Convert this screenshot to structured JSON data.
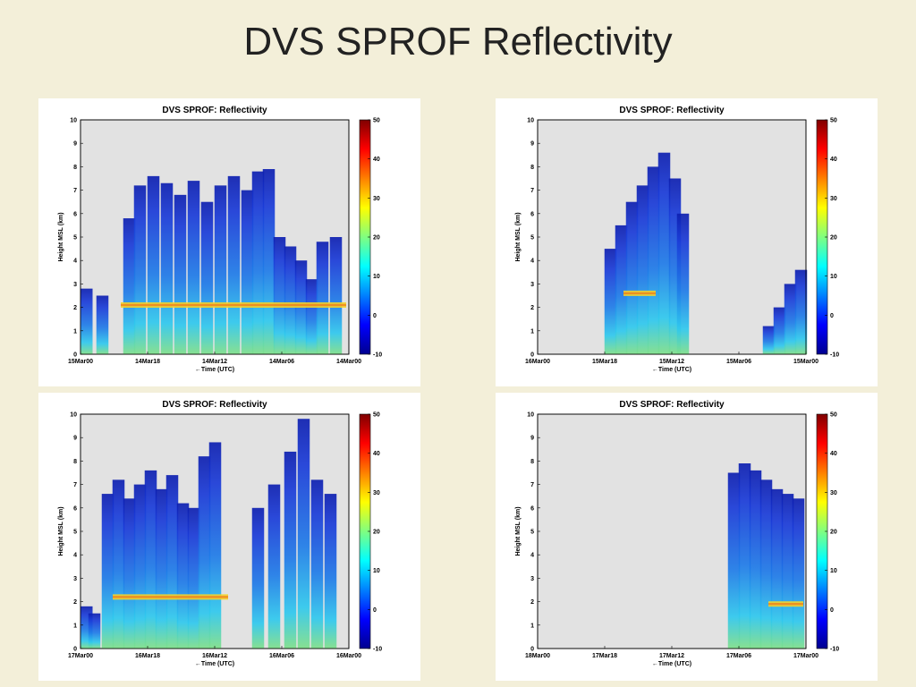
{
  "slide": {
    "title": "DVS SPROF Reflectivity"
  },
  "colors": {
    "background": "#f3efd9",
    "plot_background": "#e2e2e2",
    "colormap": [
      "#00008f",
      "#0000ff",
      "#0080ff",
      "#00ffff",
      "#80ff80",
      "#ffff00",
      "#ff8000",
      "#ff0000",
      "#800000"
    ]
  },
  "chart_data": [
    {
      "type": "heatmap",
      "title": "DVS SPROF: Reflectivity",
      "ylabel": "Height MSL (km)",
      "xlabel": "←Time (UTC)",
      "x_ticks": [
        "15Mar00",
        "14Mar18",
        "14Mar12",
        "14Mar06",
        "14Mar00"
      ],
      "y_ticks": [
        "0",
        "1",
        "2",
        "3",
        "4",
        "5",
        "6",
        "7",
        "8",
        "9",
        "10"
      ],
      "ylim": [
        0,
        10
      ],
      "colorbar": {
        "ticks": [
          "50",
          "40",
          "30",
          "20",
          "10",
          "0",
          "-10"
        ],
        "range": [
          -10,
          50
        ]
      },
      "echo_columns": [
        {
          "x": 0.02,
          "top": 2.8
        },
        {
          "x": 0.08,
          "top": 2.5
        },
        {
          "x": 0.14,
          "top": 0
        },
        {
          "x": 0.18,
          "top": 5.8
        },
        {
          "x": 0.22,
          "top": 7.2
        },
        {
          "x": 0.27,
          "top": 7.6
        },
        {
          "x": 0.32,
          "top": 7.3
        },
        {
          "x": 0.37,
          "top": 6.8
        },
        {
          "x": 0.42,
          "top": 7.4
        },
        {
          "x": 0.47,
          "top": 6.5
        },
        {
          "x": 0.52,
          "top": 7.2
        },
        {
          "x": 0.57,
          "top": 7.6
        },
        {
          "x": 0.62,
          "top": 7.0
        },
        {
          "x": 0.66,
          "top": 7.8
        },
        {
          "x": 0.7,
          "top": 7.9
        },
        {
          "x": 0.74,
          "top": 5.0
        },
        {
          "x": 0.78,
          "top": 4.6
        },
        {
          "x": 0.82,
          "top": 4.0
        },
        {
          "x": 0.86,
          "top": 3.2
        },
        {
          "x": 0.9,
          "top": 4.8
        },
        {
          "x": 0.95,
          "top": 5.0
        }
      ],
      "bright_band": {
        "height": 2.1,
        "from": 0.15,
        "to": 0.99
      }
    },
    {
      "type": "heatmap",
      "title": "DVS SPROF: Reflectivity",
      "ylabel": "Height MSL (km)",
      "xlabel": "←Time (UTC)",
      "x_ticks": [
        "16Mar00",
        "15Mar18",
        "15Mar12",
        "15Mar06",
        "15Mar00"
      ],
      "y_ticks": [
        "0",
        "1",
        "2",
        "3",
        "4",
        "5",
        "6",
        "7",
        "8",
        "9",
        "10"
      ],
      "ylim": [
        0,
        10
      ],
      "colorbar": {
        "ticks": [
          "50",
          "40",
          "30",
          "20",
          "10",
          "0",
          "-10"
        ],
        "range": [
          -10,
          50
        ]
      },
      "echo_columns": [
        {
          "x": 0.27,
          "top": 4.5
        },
        {
          "x": 0.31,
          "top": 5.5
        },
        {
          "x": 0.35,
          "top": 6.5
        },
        {
          "x": 0.39,
          "top": 7.2
        },
        {
          "x": 0.43,
          "top": 8.0
        },
        {
          "x": 0.47,
          "top": 8.6
        },
        {
          "x": 0.51,
          "top": 7.5
        },
        {
          "x": 0.54,
          "top": 6.0
        },
        {
          "x": 0.86,
          "top": 1.2
        },
        {
          "x": 0.9,
          "top": 2.0
        },
        {
          "x": 0.94,
          "top": 3.0
        },
        {
          "x": 0.98,
          "top": 3.6
        }
      ],
      "bright_band": {
        "height": 2.6,
        "from": 0.32,
        "to": 0.44
      }
    },
    {
      "type": "heatmap",
      "title": "DVS SPROF: Reflectivity",
      "ylabel": "Height MSL (km)",
      "xlabel": "←Time (UTC)",
      "x_ticks": [
        "17Mar00",
        "16Mar18",
        "16Mar12",
        "16Mar06",
        "16Mar00"
      ],
      "y_ticks": [
        "0",
        "1",
        "2",
        "3",
        "4",
        "5",
        "6",
        "7",
        "8",
        "9",
        "10"
      ],
      "ylim": [
        0,
        10
      ],
      "colorbar": {
        "ticks": [
          "50",
          "40",
          "30",
          "20",
          "10",
          "0",
          "-10"
        ],
        "range": [
          -10,
          50
        ]
      },
      "echo_columns": [
        {
          "x": 0.01,
          "top": 1.8
        },
        {
          "x": 0.05,
          "top": 1.5
        },
        {
          "x": 0.1,
          "top": 6.6
        },
        {
          "x": 0.14,
          "top": 7.2
        },
        {
          "x": 0.18,
          "top": 6.4
        },
        {
          "x": 0.22,
          "top": 7.0
        },
        {
          "x": 0.26,
          "top": 7.6
        },
        {
          "x": 0.3,
          "top": 6.8
        },
        {
          "x": 0.34,
          "top": 7.4
        },
        {
          "x": 0.38,
          "top": 6.2
        },
        {
          "x": 0.42,
          "top": 6.0
        },
        {
          "x": 0.46,
          "top": 8.2
        },
        {
          "x": 0.5,
          "top": 8.8
        },
        {
          "x": 0.56,
          "top": 0
        },
        {
          "x": 0.66,
          "top": 6.0
        },
        {
          "x": 0.72,
          "top": 7.0
        },
        {
          "x": 0.78,
          "top": 8.4
        },
        {
          "x": 0.83,
          "top": 9.8
        },
        {
          "x": 0.88,
          "top": 7.2
        },
        {
          "x": 0.93,
          "top": 6.6
        }
      ],
      "bright_band": {
        "height": 2.2,
        "from": 0.12,
        "to": 0.55
      }
    },
    {
      "type": "heatmap",
      "title": "DVS SPROF: Reflectivity",
      "ylabel": "Height MSL (km)",
      "xlabel": "←Time (UTC)",
      "x_ticks": [
        "18Mar00",
        "17Mar18",
        "17Mar12",
        "17Mar06",
        "17Mar00"
      ],
      "y_ticks": [
        "0",
        "1",
        "2",
        "3",
        "4",
        "5",
        "6",
        "7",
        "8",
        "9",
        "10"
      ],
      "ylim": [
        0,
        10
      ],
      "colorbar": {
        "ticks": [
          "50",
          "40",
          "30",
          "20",
          "10",
          "0",
          "-10"
        ],
        "range": [
          -10,
          50
        ]
      },
      "echo_columns": [
        {
          "x": 0.73,
          "top": 7.5
        },
        {
          "x": 0.77,
          "top": 7.9
        },
        {
          "x": 0.81,
          "top": 7.6
        },
        {
          "x": 0.85,
          "top": 7.2
        },
        {
          "x": 0.89,
          "top": 6.8
        },
        {
          "x": 0.93,
          "top": 6.6
        },
        {
          "x": 0.97,
          "top": 6.4
        }
      ],
      "bright_band": {
        "height": 1.9,
        "from": 0.86,
        "to": 0.99
      }
    }
  ]
}
